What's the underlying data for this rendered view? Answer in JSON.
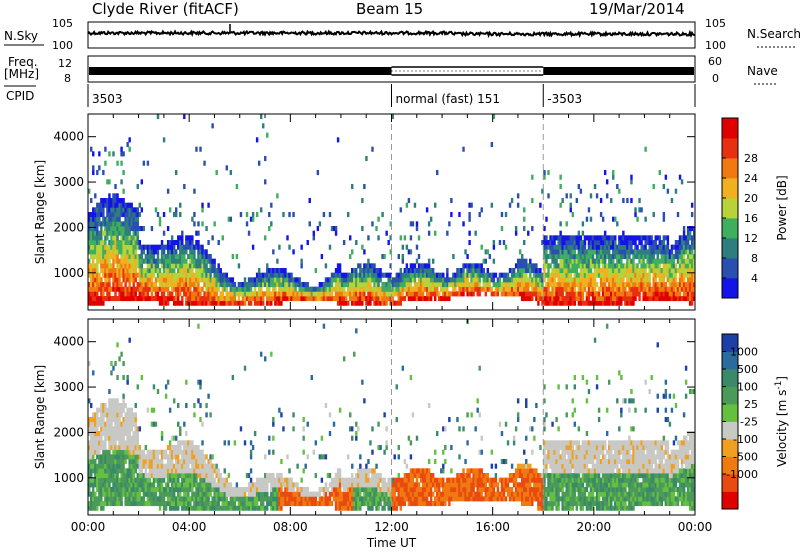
{
  "header": {
    "site": "Clyde River (fitACF)",
    "beam": "Beam 15",
    "date": "19/Mar/2014"
  },
  "chart_data": [
    {
      "type": "line",
      "panel": "noise",
      "left_label": "N.Sky",
      "right_label": "N.Search",
      "left_ticks": [
        "10^5",
        "10^0"
      ],
      "right_ticks": [
        "10^5",
        "10^0"
      ],
      "note": "sky noise (solid) and search noise (dotted) vs time"
    },
    {
      "type": "line",
      "panel": "frequency",
      "left_label_1": "Freq.",
      "left_label_2": "[MHz]",
      "left_ticks": [
        "12",
        "8"
      ],
      "right_label": "Nave",
      "right_ticks": [
        "60",
        "0"
      ],
      "cpid_label": "CPID",
      "cpid_segments": [
        {
          "start_hour": 0,
          "end_hour": 12,
          "label": "3503"
        },
        {
          "start_hour": 12,
          "end_hour": 18,
          "label": "normal (fast) 151"
        },
        {
          "start_hour": 18,
          "end_hour": 24,
          "label": "-3503"
        }
      ]
    },
    {
      "type": "heatmap",
      "panel": "power",
      "ylabel": "Slant Range [km]",
      "yticks": [
        1000,
        2000,
        3000,
        4000
      ],
      "ylim": [
        180,
        4500
      ],
      "colorbar_label": "Power [dB]",
      "colorbar_ticks": [
        "4",
        "8",
        "12",
        "16",
        "20",
        "24",
        "28"
      ],
      "colorbar_colors": [
        "#1414e6",
        "#2a4fb0",
        "#2e7e7e",
        "#3fae5f",
        "#b8d23a",
        "#f0b020",
        "#f07a10",
        "#e83010",
        "#e00000"
      ]
    },
    {
      "type": "heatmap",
      "panel": "velocity",
      "ylabel": "Slant Range [km]",
      "yticks": [
        1000,
        2000,
        3000,
        4000
      ],
      "ylim": [
        180,
        4500
      ],
      "colorbar_label": "Velocity [m s^-1]",
      "colorbar_ticks": [
        "1000",
        "500",
        "100",
        "25",
        "-25",
        "-100",
        "-500",
        "-1000"
      ],
      "colorbar_colors": [
        "#1e3ea8",
        "#2a6a9c",
        "#3a8a6a",
        "#4c9a5a",
        "#66c040",
        "#c8c8c4",
        "#f0a020",
        "#f07a10",
        "#e84a10",
        "#e00000"
      ]
    }
  ],
  "xaxis": {
    "label": "Time UT",
    "ticks": [
      "00:00",
      "04:00",
      "08:00",
      "12:00",
      "16:00",
      "20:00",
      "00:00"
    ],
    "range_hours": [
      0,
      24
    ]
  },
  "markers": {
    "dashed_hours": [
      12,
      18
    ]
  }
}
